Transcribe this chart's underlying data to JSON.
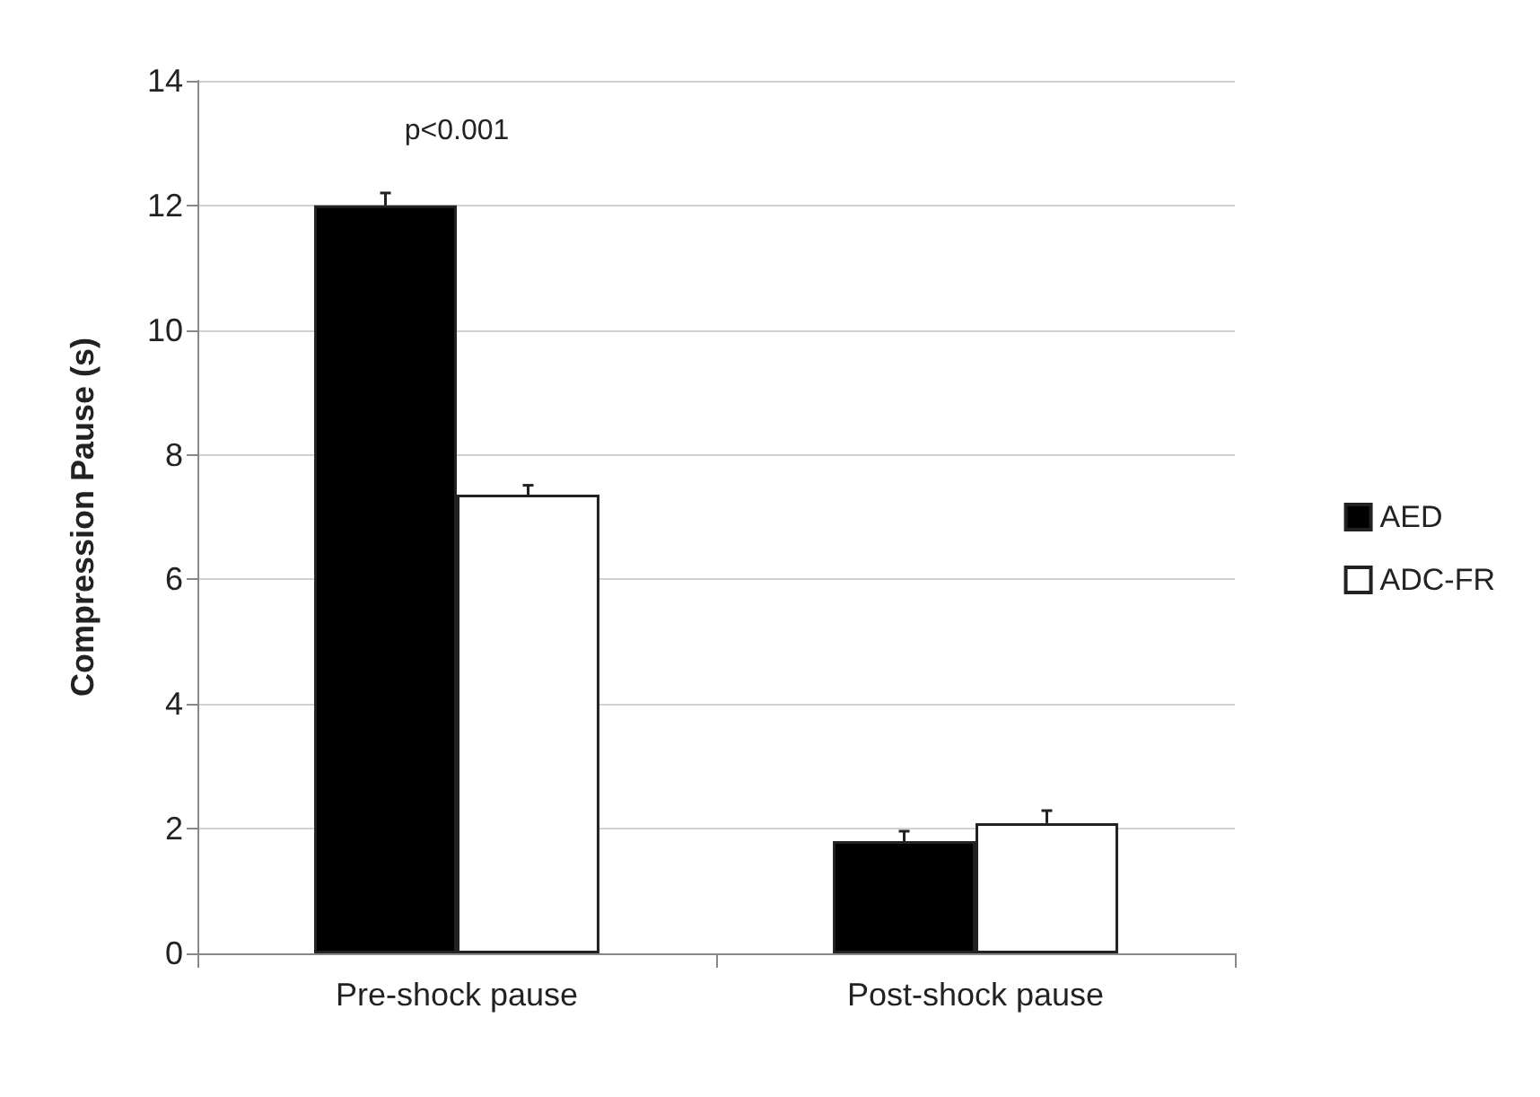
{
  "chart_data": {
    "type": "bar",
    "ylabel": "Compression Pause (s)",
    "categories": [
      "Pre-shock pause",
      "Post-shock pause"
    ],
    "series": [
      {
        "name": "AED",
        "color": "#000000",
        "values": [
          12.0,
          1.8
        ],
        "errors": [
          0.2,
          0.16
        ]
      },
      {
        "name": "ADC-FR",
        "color": "#ffffff",
        "values": [
          7.36,
          2.09
        ],
        "errors": [
          0.15,
          0.2
        ]
      }
    ],
    "ylim": [
      0,
      14
    ],
    "yticks": [
      0,
      2,
      4,
      6,
      8,
      10,
      12,
      14
    ],
    "grid": "y",
    "legend": "right",
    "annotations": [
      "p<0.001"
    ]
  }
}
